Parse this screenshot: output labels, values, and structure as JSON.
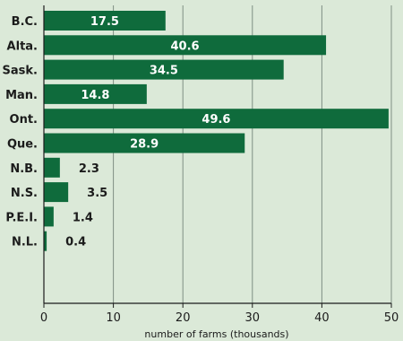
{
  "chart_data": {
    "type": "bar",
    "orientation": "horizontal",
    "categories": [
      "B.C.",
      "Alta.",
      "Sask.",
      "Man.",
      "Ont.",
      "Que.",
      "N.B.",
      "N.S.",
      "P.E.I.",
      "N.L."
    ],
    "values": [
      17.5,
      40.6,
      34.5,
      14.8,
      49.6,
      28.9,
      2.3,
      3.5,
      1.4,
      0.4
    ],
    "value_labels": [
      "17.5",
      "40.6",
      "34.5",
      "14.8",
      "49.6",
      "28.9",
      "2.3",
      "3.5",
      "1.4",
      "0.4"
    ],
    "xlabel": "number of farms (thousands)",
    "ylabel": "",
    "xlim": [
      0,
      50
    ],
    "xticks": [
      0,
      10,
      20,
      30,
      40,
      50
    ],
    "grid": "vertical",
    "legend": "none",
    "bar_color": "#0f6b3c",
    "grid_color": "#7f8f84",
    "background_color": "#dbe9d8"
  }
}
